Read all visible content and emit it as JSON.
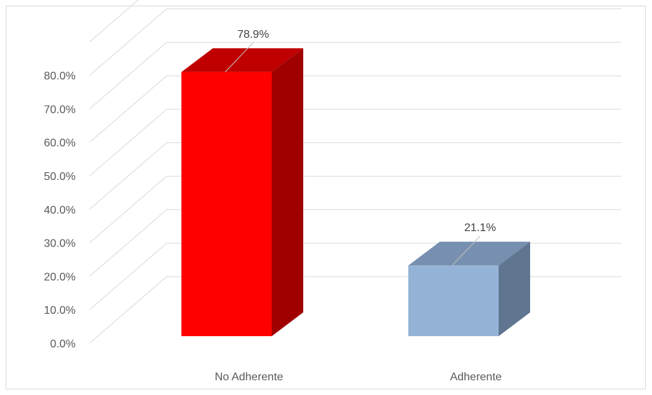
{
  "chart_data": {
    "type": "bar",
    "style": "3d-column",
    "categories": [
      "No Adherente",
      "Adherente"
    ],
    "values": [
      78.9,
      21.1
    ],
    "data_labels": [
      "78.9%",
      "21.1%"
    ],
    "y_ticks": [
      "0.0%",
      "10.0%",
      "20.0%",
      "30.0%",
      "40.0%",
      "50.0%",
      "60.0%",
      "70.0%",
      "80.0%"
    ],
    "ylim": [
      0,
      90
    ],
    "grid": true,
    "legend": "none",
    "colors": {
      "No Adherente": {
        "front": "#ff0000",
        "top": "#c00000",
        "side": "#a00000"
      },
      "Adherente": {
        "front": "#95b3d7",
        "top": "#7790b0",
        "side": "#5f7590"
      }
    },
    "gridline_color": "#d9d9d9",
    "axis_text_color": "#595959"
  }
}
